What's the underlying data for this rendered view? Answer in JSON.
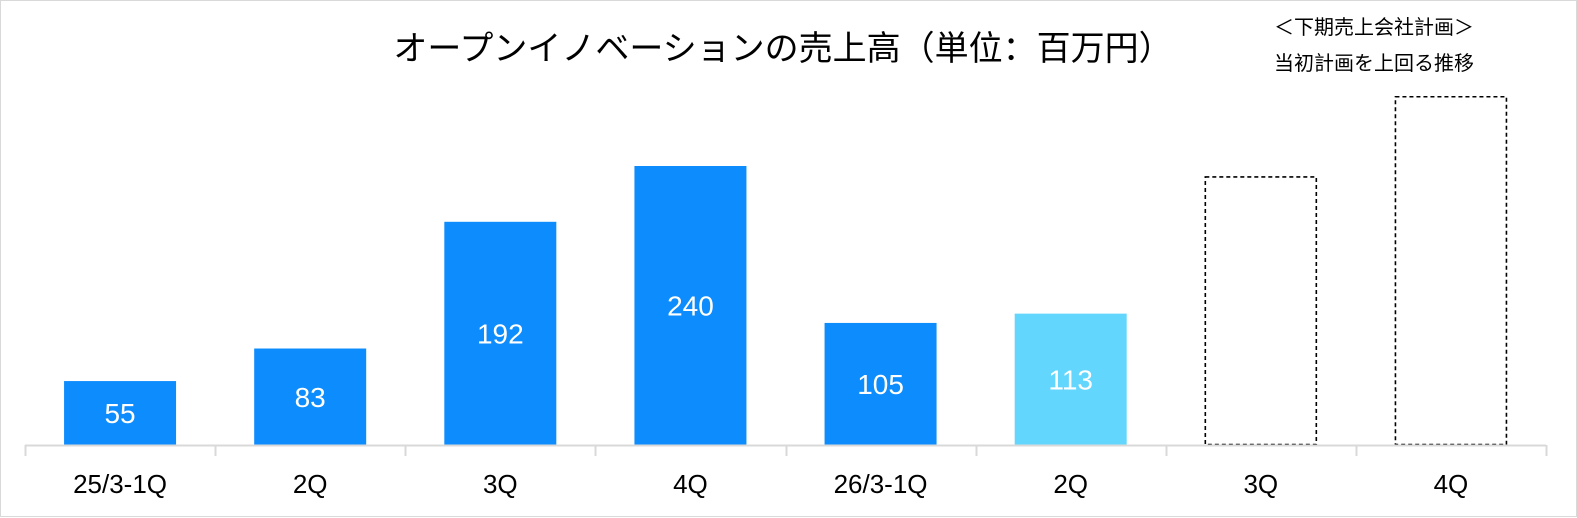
{
  "chart_data": {
    "type": "bar",
    "title": "オープンイノベーションの売上高（単位：百万円）",
    "xlabel": "",
    "ylabel": "",
    "categories": [
      "25/3-1Q",
      "2Q",
      "3Q",
      "4Q",
      "26/3-1Q",
      "2Q",
      "3Q",
      "4Q"
    ],
    "values": [
      55,
      83,
      192,
      240,
      105,
      113,
      null,
      null
    ],
    "data_labels": [
      "55",
      "83",
      "192",
      "240",
      "105",
      "113",
      "",
      ""
    ],
    "plan_values": [
      null,
      null,
      null,
      null,
      null,
      null,
      231,
      300
    ],
    "ylim": [
      0,
      240
    ],
    "grid": false,
    "legend": "none",
    "note_lines": [
      "＜下期売上会社計画＞",
      "当初計画を上回る推移"
    ],
    "colors": {
      "actual": "#0d8cfd",
      "latest": "#63d6fe",
      "plan_outline": "#000000",
      "axis": "#d9d9d9",
      "label": "#ffffff"
    }
  }
}
